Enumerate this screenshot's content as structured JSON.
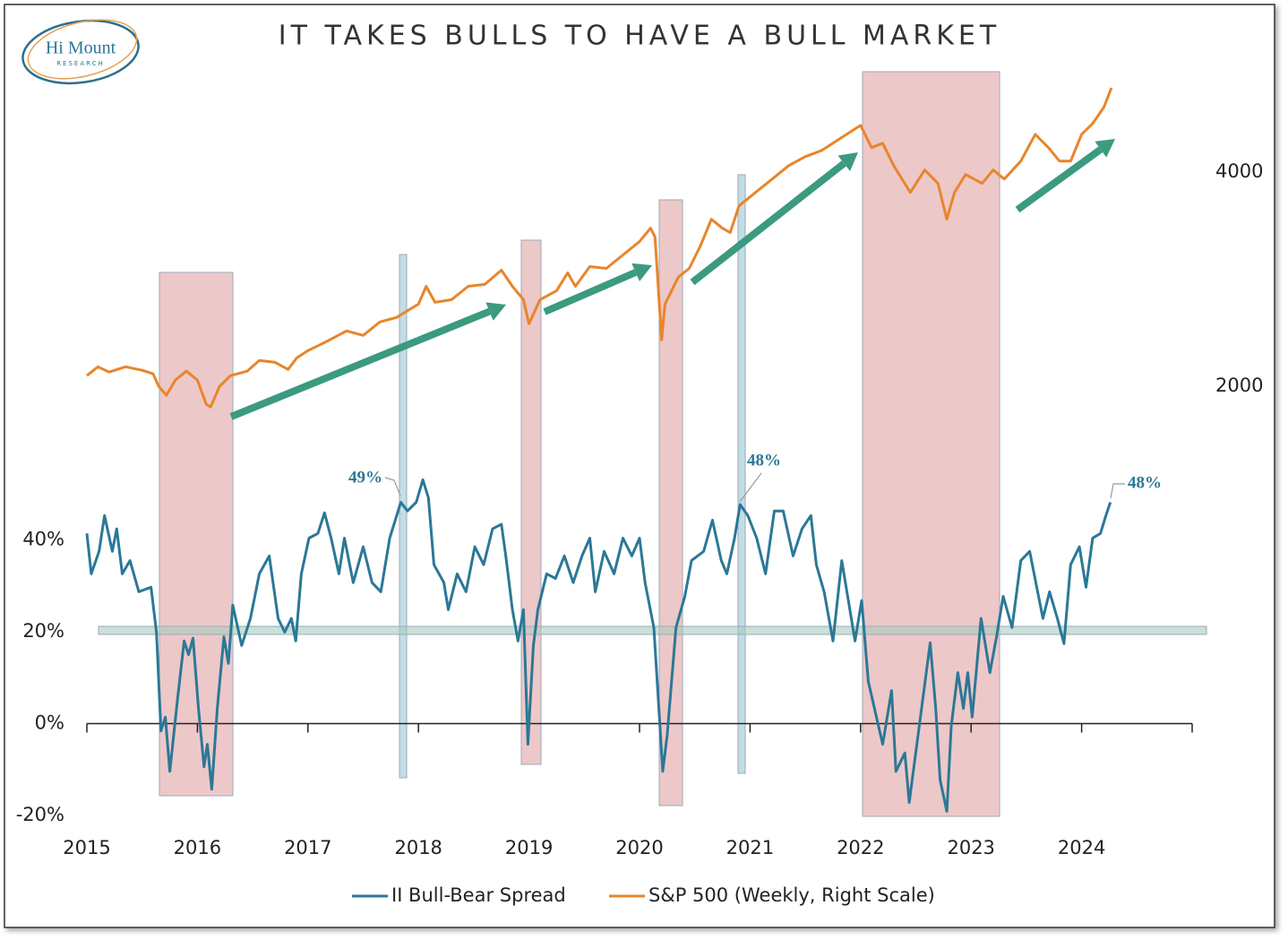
{
  "logo": {
    "name": "Hi Mount",
    "tagline": "RESEARCH"
  },
  "chart_data": {
    "type": "line",
    "title": "IT TAKES BULLS TO HAVE A BULL MARKET",
    "xlim": [
      2015,
      2025
    ],
    "xticks": [
      2015,
      2016,
      2017,
      2018,
      2019,
      2020,
      2021,
      2022,
      2023,
      2024
    ],
    "ylim": [
      -20,
      140
    ],
    "yticks": [
      {
        "value": -20,
        "label": "-20%"
      },
      {
        "value": 0,
        "label": "0%"
      },
      {
        "value": 20,
        "label": "20%"
      },
      {
        "value": 40,
        "label": "40%"
      }
    ],
    "y2lim": [
      -2000,
      4850
    ],
    "y2ticks": [
      2000,
      4000
    ],
    "annotations": [
      "49%",
      "48%",
      "48%"
    ],
    "series": [
      {
        "name": "II Bull-Bear Spread",
        "color": "#2b7896",
        "axis": "y",
        "x": [
          2015.0,
          2015.04,
          2015.11,
          2015.16,
          2015.23,
          2015.27,
          2015.32,
          2015.39,
          2015.47,
          2015.58,
          2015.63,
          2015.67,
          2015.71,
          2015.75,
          2015.82,
          2015.88,
          2015.92,
          2015.96,
          2016.01,
          2016.06,
          2016.09,
          2016.13,
          2016.18,
          2016.24,
          2016.28,
          2016.32,
          2016.4,
          2016.48,
          2016.56,
          2016.65,
          2016.73,
          2016.79,
          2016.85,
          2016.89,
          2016.94,
          2017.01,
          2017.09,
          2017.15,
          2017.21,
          2017.28,
          2017.33,
          2017.41,
          2017.5,
          2017.58,
          2017.66,
          2017.74,
          2017.84,
          2017.9,
          2017.98,
          2018.04,
          2018.09,
          2018.14,
          2018.23,
          2018.27,
          2018.35,
          2018.43,
          2018.51,
          2018.59,
          2018.67,
          2018.75,
          2018.79,
          2018.85,
          2018.9,
          2018.95,
          2018.99,
          2019.04,
          2019.08,
          2019.16,
          2019.24,
          2019.32,
          2019.4,
          2019.48,
          2019.55,
          2019.6,
          2019.68,
          2019.77,
          2019.85,
          2019.93,
          2020.0,
          2020.05,
          2020.13,
          2020.18,
          2020.21,
          2020.25,
          2020.33,
          2020.41,
          2020.47,
          2020.58,
          2020.66,
          2020.74,
          2020.79,
          2020.86,
          2020.91,
          2020.98,
          2021.06,
          2021.14,
          2021.22,
          2021.3,
          2021.39,
          2021.47,
          2021.55,
          2021.6,
          2021.67,
          2021.75,
          2021.83,
          2021.95,
          2022.01,
          2022.07,
          2022.2,
          2022.28,
          2022.32,
          2022.4,
          2022.44,
          2022.52,
          2022.63,
          2022.68,
          2022.72,
          2022.78,
          2022.82,
          2022.88,
          2022.93,
          2022.97,
          2023.01,
          2023.09,
          2023.17,
          2023.23,
          2023.29,
          2023.37,
          2023.45,
          2023.53,
          2023.61,
          2023.65,
          2023.71,
          2023.78,
          2023.84,
          2023.9,
          2023.98,
          2024.04,
          2024.1,
          2024.17,
          2024.22,
          2024.26
        ],
        "values": [
          41.4,
          32.6,
          37.5,
          45.3,
          37.5,
          42.4,
          32.6,
          35.5,
          28.7,
          29.7,
          19.9,
          -1.6,
          1.4,
          -10.4,
          5.3,
          18.0,
          15.0,
          18.6,
          3.3,
          -9.4,
          -4.5,
          -14.3,
          3.3,
          18.9,
          13.1,
          25.8,
          17.0,
          22.9,
          32.6,
          36.5,
          22.9,
          19.9,
          22.9,
          18.0,
          32.6,
          40.4,
          41.4,
          45.9,
          40.4,
          32.6,
          40.4,
          30.7,
          38.5,
          30.7,
          28.7,
          40.4,
          48.2,
          46.3,
          48.2,
          53.1,
          49.2,
          34.6,
          30.7,
          24.8,
          32.6,
          28.7,
          38.5,
          34.6,
          42.4,
          43.4,
          36.5,
          24.8,
          18.0,
          24.8,
          -4.5,
          17.0,
          24.8,
          32.6,
          31.6,
          36.5,
          30.7,
          36.5,
          40.4,
          28.7,
          37.5,
          32.6,
          40.4,
          36.5,
          40.4,
          30.7,
          20.9,
          1.4,
          -10.4,
          -2.5,
          20.9,
          27.7,
          35.5,
          37.5,
          44.3,
          35.5,
          32.6,
          40.4,
          47.7,
          45.3,
          40.4,
          32.6,
          46.3,
          46.3,
          36.5,
          42.4,
          45.3,
          34.6,
          28.7,
          18.0,
          35.5,
          18.0,
          26.8,
          9.2,
          -4.5,
          7.2,
          -10.4,
          -6.4,
          -17.2,
          -2.5,
          17.6,
          3.3,
          -12.3,
          -19.1,
          -0.6,
          11.1,
          3.3,
          11.1,
          1.4,
          22.9,
          11.1,
          18.9,
          27.7,
          20.9,
          35.5,
          37.5,
          27.7,
          22.9,
          28.7,
          22.9,
          17.4,
          34.6,
          38.5,
          29.7,
          40.4,
          41.4,
          45.3,
          48.2
        ]
      },
      {
        "name": "S&P 500 (Weekly, Right Scale)",
        "color": "#e8852b",
        "axis": "y2",
        "x": [
          2015.0,
          2015.1,
          2015.2,
          2015.35,
          2015.5,
          2015.6,
          2015.65,
          2015.72,
          2015.8,
          2015.9,
          2016.0,
          2016.08,
          2016.12,
          2016.2,
          2016.3,
          2016.45,
          2016.56,
          2016.7,
          2016.82,
          2016.9,
          2017.0,
          2017.15,
          2017.35,
          2017.5,
          2017.65,
          2017.8,
          2018.0,
          2018.07,
          2018.15,
          2018.3,
          2018.45,
          2018.6,
          2018.75,
          2018.85,
          2018.95,
          2019.0,
          2019.1,
          2019.25,
          2019.35,
          2019.42,
          2019.55,
          2019.7,
          2019.85,
          2020.0,
          2020.1,
          2020.14,
          2020.2,
          2020.23,
          2020.35,
          2020.45,
          2020.55,
          2020.65,
          2020.75,
          2020.82,
          2020.9,
          2021.05,
          2021.2,
          2021.35,
          2021.5,
          2021.65,
          2021.75,
          2021.9,
          2022.0,
          2022.1,
          2022.2,
          2022.3,
          2022.45,
          2022.58,
          2022.7,
          2022.78,
          2022.85,
          2022.95,
          2023.1,
          2023.2,
          2023.3,
          2023.45,
          2023.58,
          2023.7,
          2023.8,
          2023.9,
          2024.0,
          2024.1,
          2024.2,
          2024.27
        ],
        "values": [
          2100,
          2183,
          2133,
          2183,
          2150,
          2117,
          2000,
          1917,
          2058,
          2142,
          2058,
          1833,
          1808,
          2000,
          2100,
          2142,
          2242,
          2225,
          2158,
          2267,
          2333,
          2408,
          2517,
          2475,
          2600,
          2642,
          2767,
          2933,
          2783,
          2808,
          2933,
          2950,
          3083,
          2933,
          2808,
          2583,
          2808,
          2892,
          3058,
          2933,
          3117,
          3100,
          3225,
          3350,
          3475,
          3392,
          2433,
          2767,
          3017,
          3100,
          3308,
          3558,
          3475,
          3433,
          3683,
          3808,
          3933,
          4058,
          4142,
          4200,
          4267,
          4367,
          4433,
          4225,
          4267,
          4058,
          3808,
          4017,
          3892,
          3558,
          3808,
          3975,
          3892,
          4017,
          3933,
          4100,
          4350,
          4225,
          4100,
          4100,
          4350,
          4450,
          4600,
          4783
        ]
      }
    ]
  }
}
